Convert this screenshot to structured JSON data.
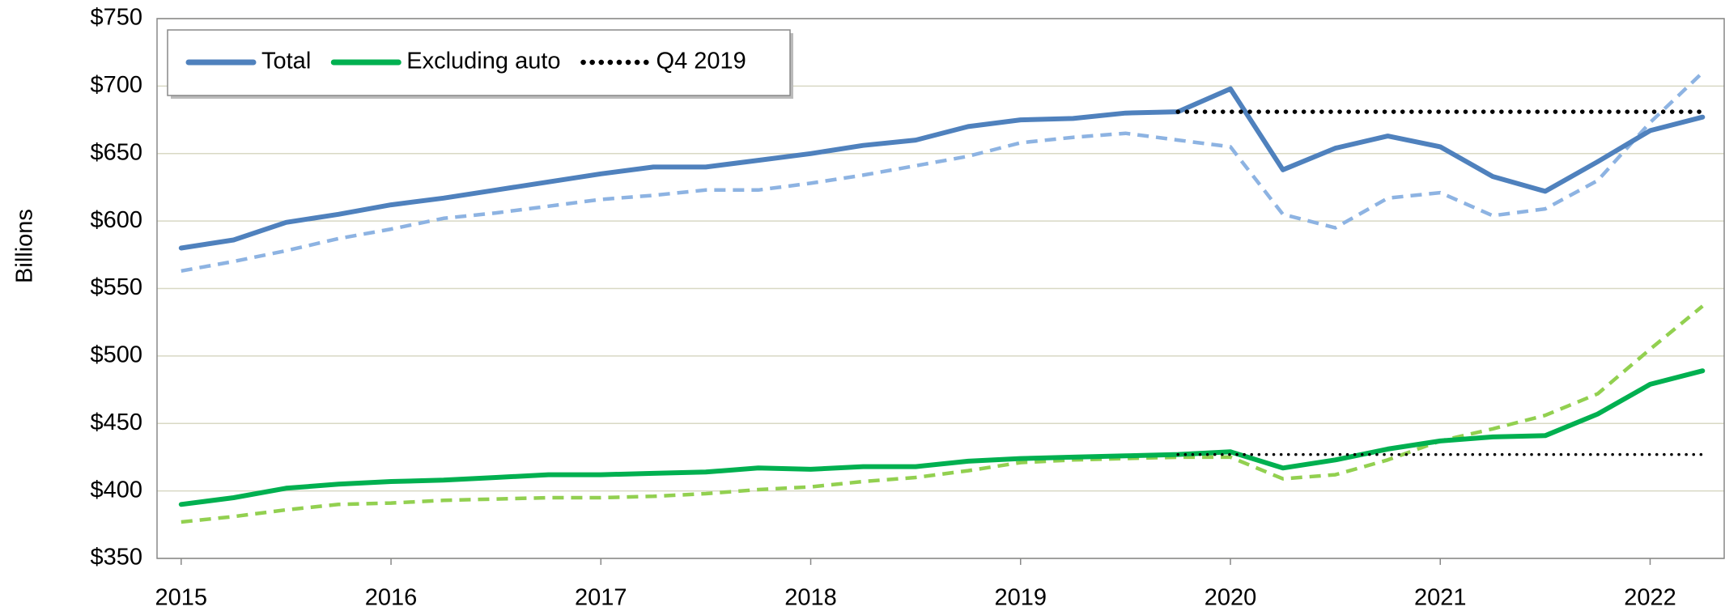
{
  "chart_data": {
    "type": "line",
    "ylabel": "Billions",
    "x": [
      2015,
      2015.25,
      2015.5,
      2015.75,
      2016,
      2016.25,
      2016.5,
      2016.75,
      2017,
      2017.25,
      2017.5,
      2017.75,
      2018,
      2018.25,
      2018.5,
      2018.75,
      2019,
      2019.25,
      2019.5,
      2019.75,
      2020,
      2020.25,
      2020.5,
      2020.75,
      2021,
      2021.25,
      2021.5,
      2021.75,
      2022,
      2022.25
    ],
    "xlim": [
      2014.885,
      2022.353
    ],
    "xticks": [
      2015,
      2016,
      2017,
      2018,
      2019,
      2020,
      2021,
      2022
    ],
    "ylim": [
      350,
      750
    ],
    "yticks": [
      {
        "value": 350,
        "label": "$350"
      },
      {
        "value": 400,
        "label": "$400"
      },
      {
        "value": 450,
        "label": "$450"
      },
      {
        "value": 500,
        "label": "$500"
      },
      {
        "value": 550,
        "label": "$550"
      },
      {
        "value": 600,
        "label": "$600"
      },
      {
        "value": 650,
        "label": "$650"
      },
      {
        "value": 700,
        "label": "$700"
      },
      {
        "value": 750,
        "label": "$750"
      }
    ],
    "grid": true,
    "legend": "upper left",
    "series": [
      {
        "color": "#8db3e2",
        "style": "dashed",
        "values": [
          563,
          570,
          578,
          587,
          594,
          602,
          606,
          611,
          616,
          619,
          623,
          623,
          628,
          634,
          641,
          648,
          658,
          662,
          665,
          660,
          655,
          605,
          595,
          617,
          621,
          604,
          609,
          630,
          673,
          710
        ]
      },
      {
        "color": "#92d050",
        "style": "dashed",
        "values": [
          377,
          381,
          386,
          390,
          391,
          393,
          394,
          395,
          395,
          396,
          398,
          401,
          403,
          407,
          410,
          415,
          421,
          423,
          424,
          425,
          425,
          409,
          412,
          423,
          437,
          446,
          456,
          472,
          505,
          537
        ]
      },
      {
        "name": "Total",
        "color": "#4f81bd",
        "style": "solid",
        "values": [
          580,
          586,
          599,
          605,
          612,
          617,
          623,
          629,
          635,
          640,
          640,
          645,
          650,
          656,
          660,
          670,
          675,
          676,
          680,
          681,
          698,
          638,
          654,
          663,
          655,
          633,
          622,
          644,
          667,
          677
        ]
      },
      {
        "name": "Excluding auto",
        "color": "#00b050",
        "style": "solid",
        "values": [
          390,
          395,
          402,
          405,
          407,
          408,
          410,
          412,
          412,
          413,
          414,
          417,
          416,
          418,
          418,
          422,
          424,
          425,
          426,
          427,
          429,
          417,
          423,
          431,
          437,
          440,
          441,
          457,
          479,
          489
        ]
      },
      {
        "name": "Q4 2019",
        "color": "#000000",
        "style": "dotted",
        "values": [
          null,
          null,
          null,
          null,
          null,
          null,
          null,
          null,
          null,
          null,
          null,
          null,
          null,
          null,
          null,
          null,
          null,
          null,
          null,
          681,
          681,
          681,
          681,
          681,
          681,
          681,
          681,
          681,
          681,
          681
        ]
      },
      {
        "color": "#000000",
        "style": "dotted-thin",
        "values": [
          null,
          null,
          null,
          null,
          null,
          null,
          null,
          null,
          null,
          null,
          null,
          null,
          null,
          null,
          null,
          null,
          null,
          null,
          null,
          427,
          427,
          427,
          427,
          427,
          427,
          427,
          427,
          427,
          427,
          427
        ]
      }
    ]
  }
}
